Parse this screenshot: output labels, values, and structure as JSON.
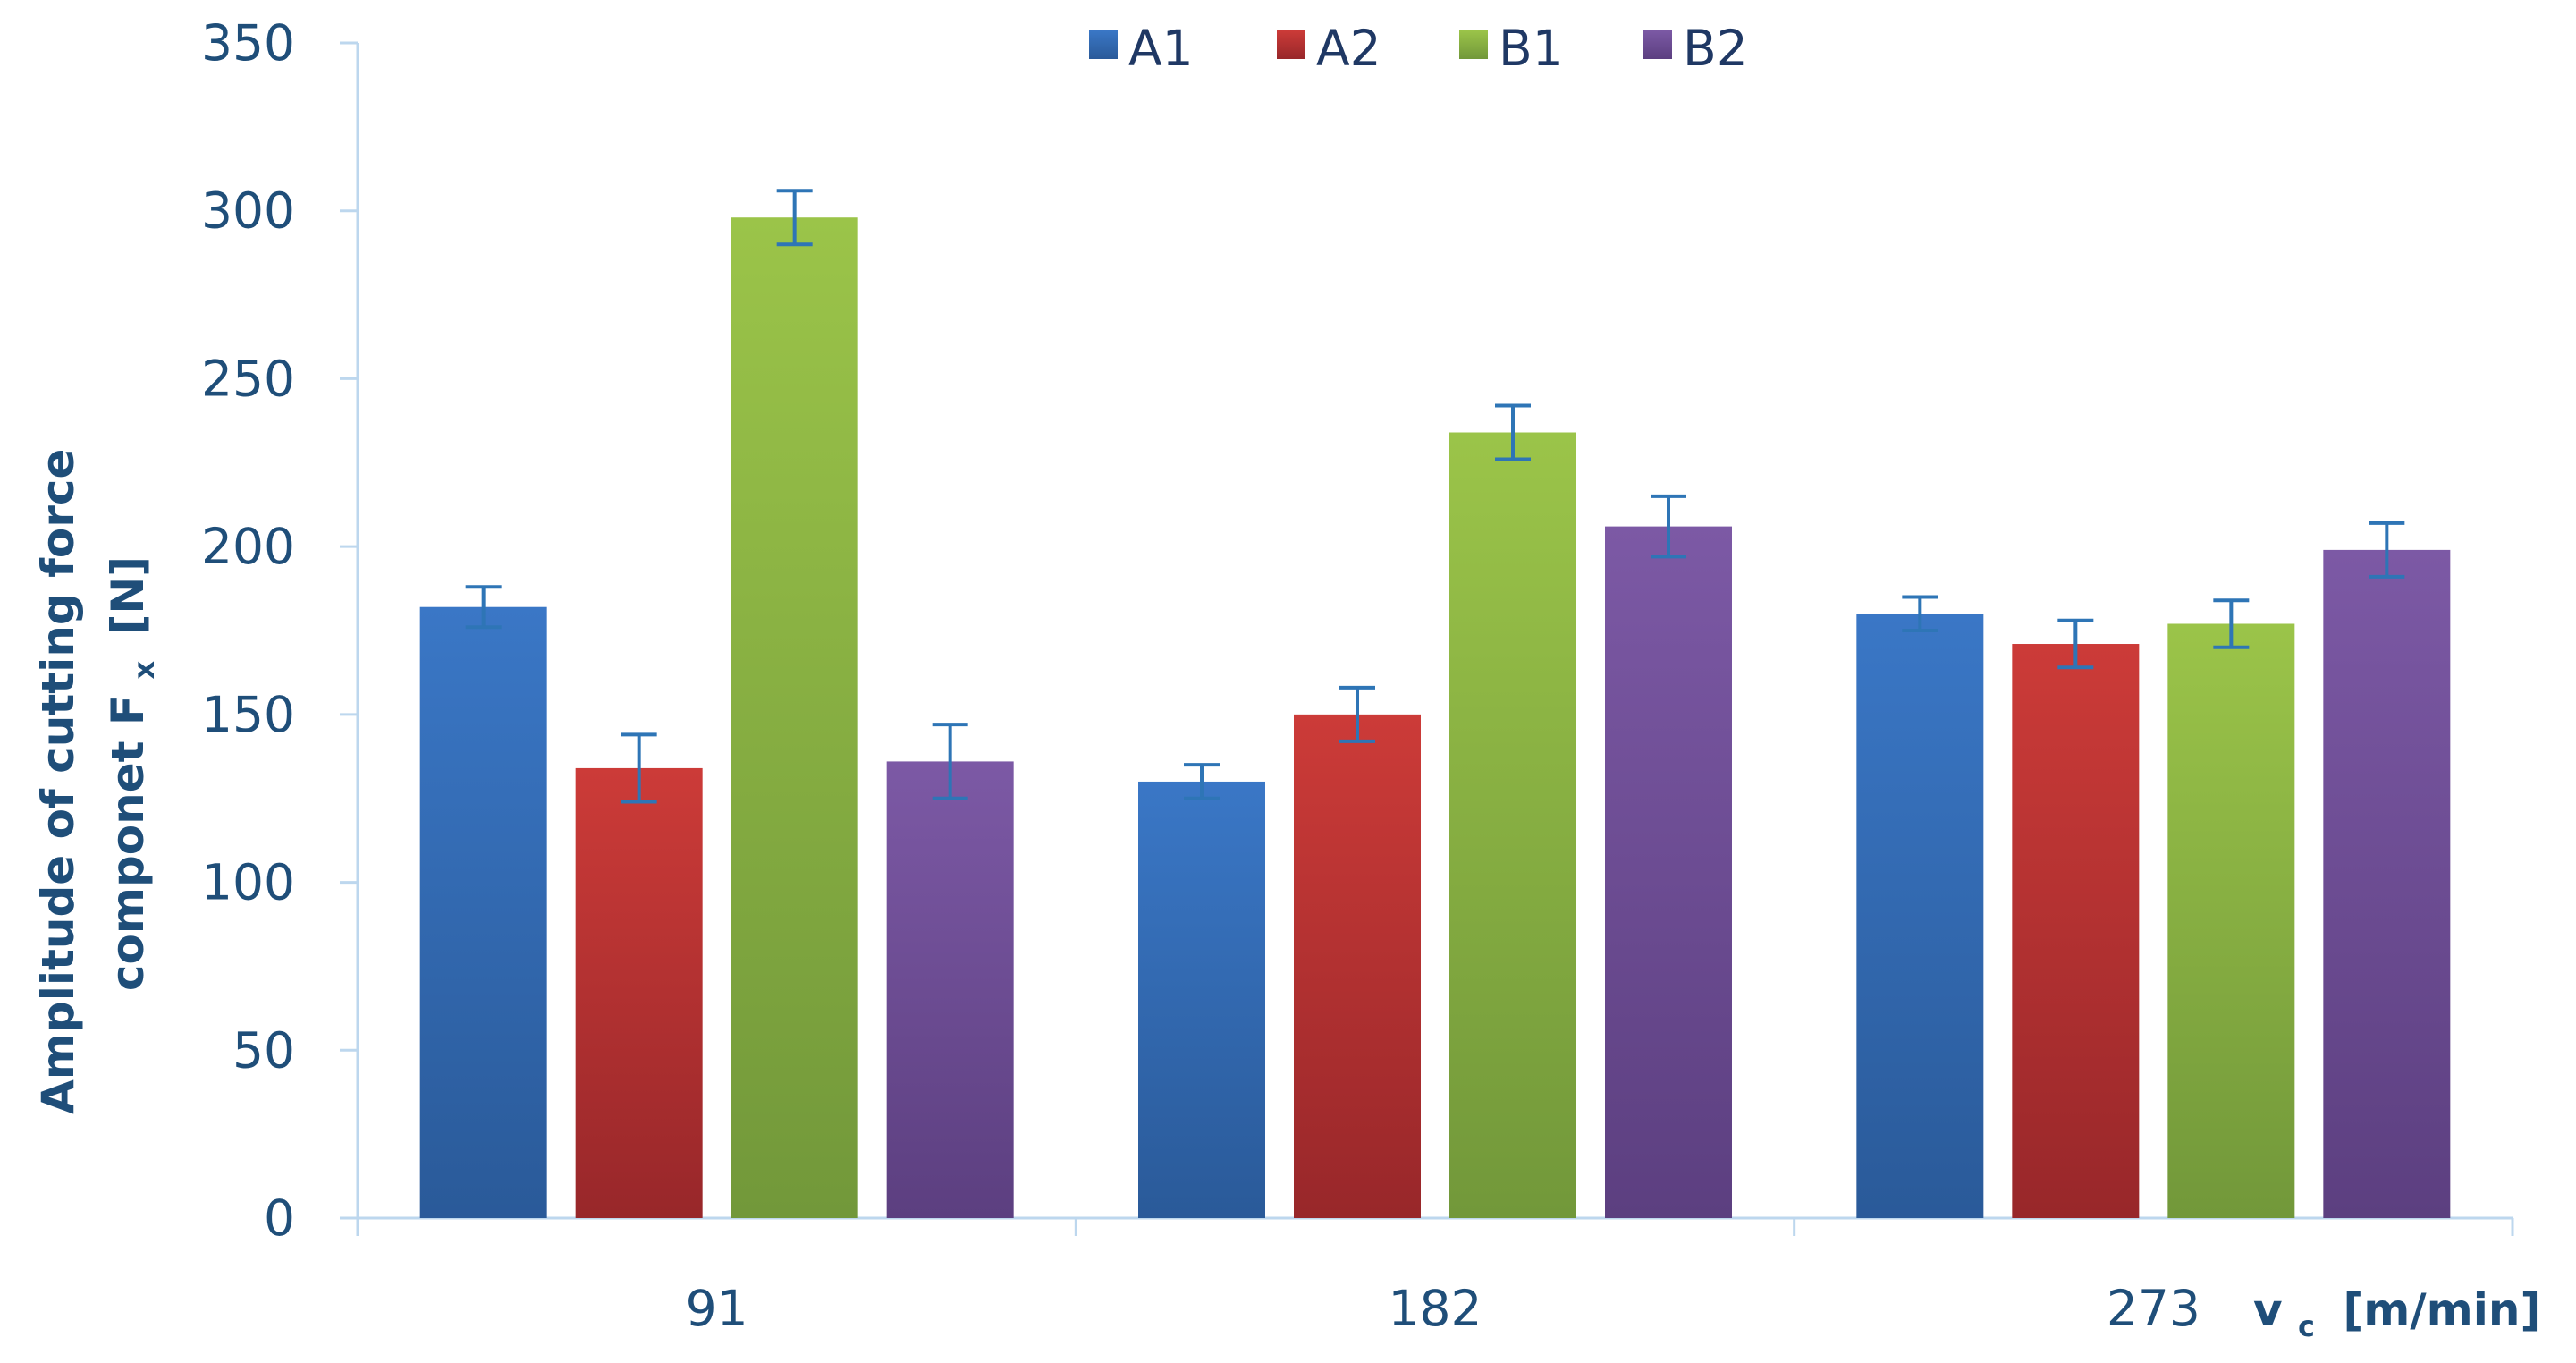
{
  "chart_data": {
    "type": "bar",
    "categories": [
      "91",
      "182",
      "273"
    ],
    "series": [
      {
        "name": "A1",
        "values": [
          182,
          130,
          180
        ],
        "errors": [
          6,
          5,
          5
        ],
        "color": "#3a77c6",
        "color_dark": "#2a5a99"
      },
      {
        "name": "A2",
        "values": [
          134,
          150,
          171
        ],
        "errors": [
          10,
          8,
          7
        ],
        "color": "#cc3b38",
        "color_dark": "#98272a"
      },
      {
        "name": "B1",
        "values": [
          298,
          234,
          177
        ],
        "errors": [
          8,
          8,
          7
        ],
        "color": "#9bc449",
        "color_dark": "#72983a"
      },
      {
        "name": "B2",
        "values": [
          136,
          206,
          199
        ],
        "errors": [
          11,
          9,
          8
        ],
        "color": "#7c59a5",
        "color_dark": "#5c3f80"
      }
    ],
    "title": "",
    "xlabel": "v",
    "xlabel_sub": "c",
    "xlabel_units": "[m/min]",
    "ylabel_line1": "Amplitude of cutting force",
    "ylabel_line2": "componet F",
    "ylabel_line2_sub": "x",
    "ylabel_line2_end": "[N]",
    "ylim": [
      0,
      350
    ],
    "yticks": [
      0,
      50,
      100,
      150,
      200,
      250,
      300,
      350
    ],
    "grid": false,
    "legend_position": "top-center",
    "error_bar_color": "#2e75b6",
    "axis_color": "#bdd7ee"
  }
}
